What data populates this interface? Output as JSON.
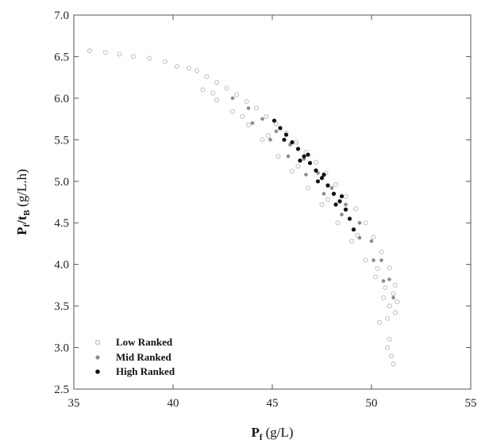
{
  "chart_data": {
    "type": "scatter",
    "title": "",
    "xlabel": {
      "main": "P",
      "sub": "f",
      "unit": "(g/L)"
    },
    "ylabel": {
      "main": "P",
      "sub": "f",
      "mid": "/t",
      "sub2": "B",
      "unit": "(g/L.h)"
    },
    "xlim": [
      35,
      55
    ],
    "ylim": [
      2.5,
      7.0
    ],
    "xticks": [
      35,
      40,
      45,
      50,
      55
    ],
    "xtick_labels": [
      "35",
      "40",
      "45",
      "50",
      "55"
    ],
    "yticks": [
      2.5,
      3.0,
      3.5,
      4.0,
      4.5,
      5.0,
      5.5,
      6.0,
      6.5,
      7.0
    ],
    "ytick_labels": [
      "2.5",
      "3.0",
      "3.5",
      "4.0",
      "4.5",
      "5.0",
      "5.5",
      "6.0",
      "6.5",
      "7.0"
    ],
    "grid": false,
    "legend_position": "bottom-left",
    "series": [
      {
        "name": "Low Ranked",
        "color": "#c8c8c8",
        "marker": "open-circle",
        "points": [
          [
            35.8,
            6.57
          ],
          [
            36.6,
            6.55
          ],
          [
            37.3,
            6.53
          ],
          [
            38.0,
            6.5
          ],
          [
            38.8,
            6.48
          ],
          [
            39.6,
            6.44
          ],
          [
            40.2,
            6.38
          ],
          [
            40.8,
            6.36
          ],
          [
            41.2,
            6.33
          ],
          [
            41.7,
            6.26
          ],
          [
            42.2,
            6.19
          ],
          [
            42.7,
            6.12
          ],
          [
            43.2,
            6.04
          ],
          [
            43.7,
            5.96
          ],
          [
            44.2,
            5.88
          ],
          [
            44.7,
            5.78
          ],
          [
            45.2,
            5.69
          ],
          [
            45.7,
            5.58
          ],
          [
            46.2,
            5.47
          ],
          [
            46.7,
            5.35
          ],
          [
            47.2,
            5.23
          ],
          [
            47.7,
            5.1
          ],
          [
            48.2,
            4.96
          ],
          [
            48.7,
            4.82
          ],
          [
            49.2,
            4.67
          ],
          [
            49.7,
            4.5
          ],
          [
            50.1,
            4.33
          ],
          [
            50.5,
            4.15
          ],
          [
            50.9,
            3.96
          ],
          [
            51.2,
            3.75
          ],
          [
            51.3,
            3.55
          ],
          [
            51.2,
            3.42
          ],
          [
            41.5,
            6.1
          ],
          [
            42.2,
            5.98
          ],
          [
            43.0,
            5.84
          ],
          [
            43.8,
            5.68
          ],
          [
            44.5,
            5.5
          ],
          [
            45.3,
            5.3
          ],
          [
            46.0,
            5.12
          ],
          [
            46.8,
            4.92
          ],
          [
            47.5,
            4.72
          ],
          [
            48.3,
            4.5
          ],
          [
            49.0,
            4.28
          ],
          [
            49.7,
            4.05
          ],
          [
            50.2,
            3.85
          ],
          [
            50.6,
            3.6
          ],
          [
            50.8,
            3.35
          ],
          [
            50.9,
            3.1
          ],
          [
            51.0,
            2.9
          ],
          [
            51.1,
            2.8
          ],
          [
            50.8,
            3.0
          ],
          [
            50.4,
            3.3
          ],
          [
            42.0,
            6.06
          ],
          [
            43.5,
            5.78
          ],
          [
            44.8,
            5.55
          ],
          [
            46.3,
            5.18
          ],
          [
            47.8,
            4.78
          ],
          [
            49.3,
            4.35
          ],
          [
            50.3,
            3.95
          ],
          [
            50.7,
            3.72
          ],
          [
            50.9,
            3.5
          ],
          [
            51.1,
            3.65
          ]
        ]
      },
      {
        "name": "Mid Ranked",
        "color": "#8c8c8c",
        "marker": "filled-circle",
        "points": [
          [
            43.0,
            6.0
          ],
          [
            43.8,
            5.88
          ],
          [
            44.5,
            5.75
          ],
          [
            45.2,
            5.6
          ],
          [
            45.9,
            5.44
          ],
          [
            46.6,
            5.27
          ],
          [
            47.3,
            5.1
          ],
          [
            48.0,
            4.92
          ],
          [
            48.7,
            4.72
          ],
          [
            49.4,
            4.5
          ],
          [
            50.0,
            4.28
          ],
          [
            50.5,
            4.05
          ],
          [
            50.9,
            3.82
          ],
          [
            51.1,
            3.6
          ],
          [
            44.0,
            5.7
          ],
          [
            44.9,
            5.5
          ],
          [
            45.8,
            5.3
          ],
          [
            46.7,
            5.08
          ],
          [
            47.6,
            4.85
          ],
          [
            48.5,
            4.6
          ],
          [
            49.4,
            4.32
          ],
          [
            50.1,
            4.05
          ],
          [
            50.6,
            3.8
          ]
        ]
      },
      {
        "name": "High Ranked",
        "color": "#111111",
        "marker": "filled-circle",
        "points": [
          [
            45.1,
            5.73
          ],
          [
            45.4,
            5.64
          ],
          [
            45.7,
            5.56
          ],
          [
            46.0,
            5.47
          ],
          [
            46.3,
            5.39
          ],
          [
            46.6,
            5.3
          ],
          [
            46.9,
            5.22
          ],
          [
            47.2,
            5.13
          ],
          [
            47.5,
            5.04
          ],
          [
            47.8,
            4.95
          ],
          [
            48.1,
            4.85
          ],
          [
            48.4,
            4.76
          ],
          [
            48.7,
            4.66
          ],
          [
            48.9,
            4.55
          ],
          [
            49.1,
            4.42
          ],
          [
            45.6,
            5.5
          ],
          [
            46.4,
            5.25
          ],
          [
            47.3,
            5.0
          ],
          [
            48.2,
            4.72
          ],
          [
            46.8,
            5.32
          ],
          [
            47.6,
            5.08
          ],
          [
            48.5,
            4.82
          ]
        ]
      }
    ]
  }
}
